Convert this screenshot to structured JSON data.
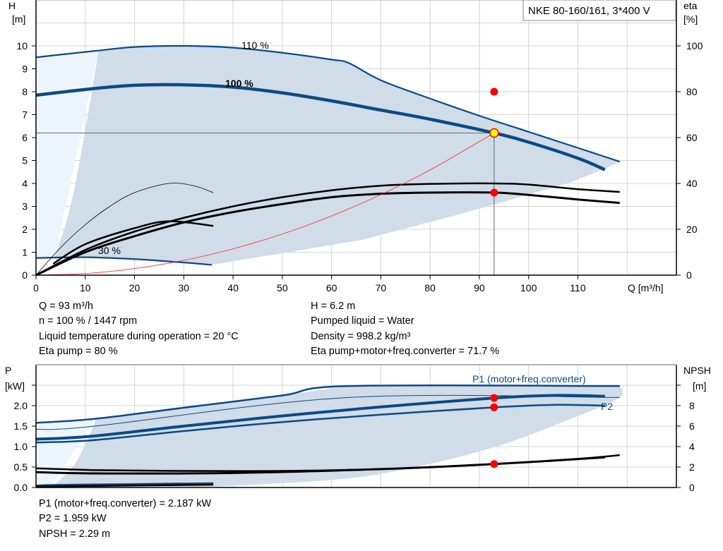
{
  "title_box": "NKE 80-160/161, 3*400 V",
  "colors": {
    "curve_blue": "#0b4a86",
    "area": "#d0dce8",
    "area_light": "#edf5fc",
    "system_curve": "#ff2a2a",
    "operating_point": "#ffff00",
    "marker": "#ff0000"
  },
  "info_top": {
    "left": [
      "Q = 93 m³/h",
      "n = 100 % / 1447 rpm",
      "Liquid temperature during operation = 20 °C",
      "Eta pump = 80 %"
    ],
    "right": [
      "H = 6.2 m",
      "Pumped liquid = Water",
      "Density = 998.2 kg/m³",
      "Eta pump+motor+freq.converter = 71.7 %"
    ]
  },
  "info_bottom": [
    "P1 (motor+freq.converter) = 2.187 kW",
    "P2 = 1.959 kW",
    "NPSH = 2.29 m"
  ],
  "chart_data": [
    {
      "type": "line",
      "ylabel": [
        "H",
        "[m]"
      ],
      "y2label": [
        "eta",
        "[%]"
      ],
      "xlabel": "Q [m³/h]",
      "xlim": [
        0,
        130
      ],
      "ylim": [
        0,
        12
      ],
      "y2lim": [
        0,
        120
      ],
      "xticks": [
        "0",
        "10",
        "20",
        "30",
        "40",
        "50",
        "60",
        "70",
        "80",
        "90",
        "100",
        "110"
      ],
      "yticks": [
        "0",
        "1",
        "2",
        "3",
        "4",
        "5",
        "6",
        "7",
        "8",
        "9",
        "10"
      ],
      "y2ticks": [
        "0",
        "20",
        "40",
        "60",
        "80",
        "100"
      ],
      "grid": true,
      "curve_labels": {
        "max": "110 %",
        "nominal": "100 %",
        "min": "30 %"
      },
      "series": [
        {
          "name": "110 %",
          "x": [
            0,
            12,
            20,
            30,
            40,
            50,
            60,
            63.5,
            70,
            80,
            90,
            100,
            110,
            118.5
          ],
          "y": [
            9.5,
            9.78,
            9.95,
            10,
            9.92,
            9.7,
            9.4,
            9.25,
            8.5,
            7.7,
            6.95,
            6.25,
            5.55,
            4.95
          ]
        },
        {
          "name": "100 %",
          "x": [
            0,
            11,
            20,
            30,
            40,
            50,
            60,
            70,
            80,
            93,
            100,
            110,
            115.5
          ],
          "y": [
            7.85,
            8.12,
            8.28,
            8.3,
            8.2,
            7.95,
            7.6,
            7.2,
            6.8,
            6.2,
            5.8,
            5.1,
            4.6
          ]
        },
        {
          "name": "30 %",
          "x": [
            0,
            10,
            20,
            30,
            35.7
          ],
          "y": [
            0.75,
            0.78,
            0.7,
            0.55,
            0.45
          ]
        },
        {
          "x": [
            0,
            10,
            20,
            30,
            40,
            50,
            60,
            70,
            80,
            93,
            100,
            110,
            118.5
          ],
          "y_eta": [
            0,
            11,
            19,
            25,
            30,
            34,
            37,
            39,
            39.8,
            40,
            39.5,
            37.5,
            36.3
          ]
        },
        {
          "x": [
            0,
            10,
            20,
            30,
            40,
            50,
            60,
            70,
            80,
            93,
            100,
            110,
            118.5
          ],
          "y_eta": [
            0,
            10,
            17,
            23,
            27.5,
            31,
            34,
            35.5,
            36,
            36,
            35,
            33,
            31.5
          ]
        },
        {
          "x": [
            3.5,
            10,
            20,
            27,
            36
          ],
          "y_eta": [
            5,
            13.5,
            20.5,
            23.5,
            21.5
          ]
        },
        {
          "x": [
            0,
            5,
            10,
            15,
            20,
            27,
            32,
            36
          ],
          "y_eta": [
            0,
            12,
            22,
            30,
            36,
            40,
            39,
            36
          ]
        },
        {
          "name": "system curve",
          "x": [
            0,
            10,
            20,
            30,
            40,
            50,
            60,
            70,
            80,
            93
          ],
          "y": [
            0,
            0.072,
            0.287,
            0.645,
            1.147,
            1.792,
            2.581,
            3.513,
            4.588,
            6.2
          ]
        }
      ],
      "operating_point": {
        "Q": 93,
        "H": 6.2,
        "eta_pump": 80,
        "eta_total": 71.7
      }
    },
    {
      "type": "line",
      "ylabel": [
        "P",
        "[kW]"
      ],
      "y2label": [
        "NPSH",
        "[m]"
      ],
      "xlim": [
        0,
        130
      ],
      "ylim": [
        0,
        3
      ],
      "y2lim": [
        0,
        12
      ],
      "yticks": [
        "0.0",
        "0.5",
        "1.0",
        "1.5",
        "2.0"
      ],
      "y2ticks": [
        "0",
        "2",
        "4",
        "6",
        "8"
      ],
      "grid": true,
      "curve_labels": {
        "p1": "P1 (motor+freq.converter)",
        "p2": "P2"
      },
      "series": [
        {
          "x": [
            0,
            12,
            30,
            50,
            63.5,
            118.5
          ],
          "y": [
            1.58,
            1.68,
            1.95,
            2.25,
            2.48,
            2.48
          ]
        },
        {
          "x": [
            0,
            12,
            63.5,
            118.5
          ],
          "y": [
            1.42,
            1.5,
            2.2,
            2.2
          ]
        },
        {
          "name": "P1 (motor+freq.converter)",
          "x": [
            0,
            11,
            30,
            50,
            70,
            93,
            105,
            115.5
          ],
          "y": [
            1.18,
            1.25,
            1.5,
            1.75,
            1.97,
            2.187,
            2.25,
            2.23
          ]
        },
        {
          "name": "P2",
          "x": [
            0,
            11,
            30,
            50,
            70,
            93,
            105,
            115.5
          ],
          "y": [
            1.1,
            1.15,
            1.38,
            1.6,
            1.78,
            1.959,
            2.02,
            2.0
          ]
        },
        {
          "x": [
            0,
            5,
            36
          ],
          "y": [
            0.04,
            0.06,
            0.1
          ]
        },
        {
          "name": "NPSH",
          "x": [
            0,
            12,
            30,
            50,
            70,
            93,
            110,
            118.5
          ],
          "y_npsh": [
            1.88,
            1.7,
            1.62,
            1.62,
            1.8,
            2.29,
            2.8,
            3.16
          ]
        },
        {
          "x": [
            0,
            12,
            40,
            70,
            93,
            115.5
          ],
          "y_npsh": [
            1.5,
            1.38,
            1.42,
            1.8,
            2.29,
            2.95
          ]
        }
      ],
      "operating_point": {
        "Q": 93,
        "P1": 2.187,
        "P2": 1.959,
        "NPSH": 2.29
      }
    }
  ]
}
